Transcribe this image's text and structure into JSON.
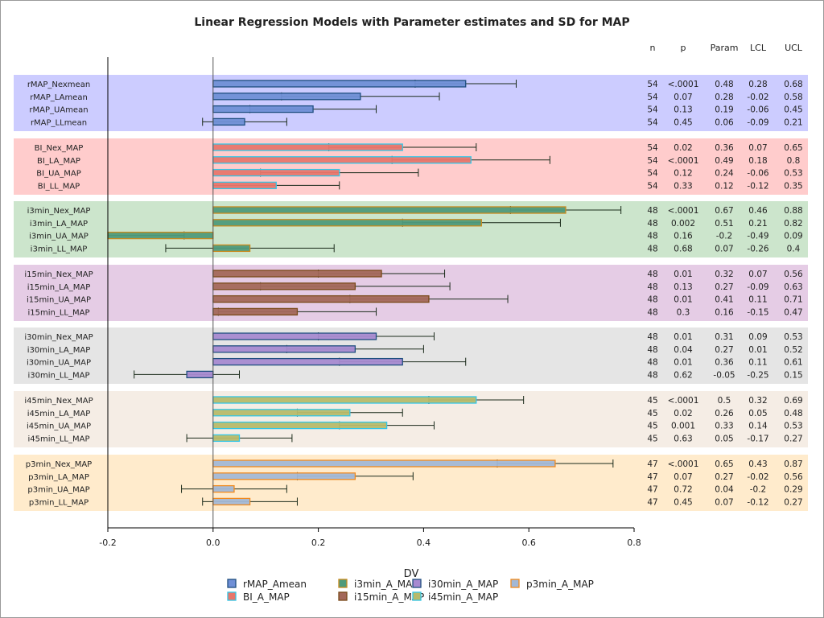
{
  "chart_data": {
    "type": "bar",
    "orientation": "horizontal",
    "title": "Linear Regression Models with Parameter estimates and SD for MAP",
    "xlim": [
      -0.2,
      0.8
    ],
    "xticks": [
      "-0.2",
      "0.0",
      "0.2",
      "0.4",
      "0.6",
      "0.8"
    ],
    "xtick_values": [
      -0.2,
      0,
      0.2,
      0.4,
      0.6,
      0.8
    ],
    "table_headers": [
      "n",
      "p",
      "Param",
      "LCL",
      "UCL"
    ],
    "legend": {
      "title": "DV",
      "placement": "bottom"
    },
    "groups": [
      {
        "name": "rMAP_Amean",
        "band": "#ccccff",
        "fill": "#6f8fd6",
        "border": "#1f4f80",
        "rows": [
          {
            "label": "rMAP_Nexmean",
            "n": "54",
            "p": "<.0001",
            "param": 0.48,
            "lcl": "0.28",
            "ucl": "0.68",
            "sd": 0.096
          },
          {
            "label": "rMAP_LAmean",
            "n": "54",
            "p": "0.07",
            "param": 0.28,
            "lcl": "-0.02",
            "ucl": "0.58",
            "sd": 0.15
          },
          {
            "label": "rMAP_UAmean",
            "n": "54",
            "p": "0.13",
            "param": 0.19,
            "lcl": "-0.06",
            "ucl": "0.45",
            "sd": 0.12
          },
          {
            "label": "rMAP_LLmean",
            "n": "54",
            "p": "0.45",
            "param": 0.06,
            "lcl": "-0.09",
            "ucl": "0.21",
            "sd": 0.08
          }
        ]
      },
      {
        "name": "BI_A_MAP",
        "band": "#ffcccc",
        "fill": "#e8766b",
        "border": "#33c6e6",
        "rows": [
          {
            "label": "BI_Nex_MAP",
            "n": "54",
            "p": "0.02",
            "param": 0.36,
            "lcl": "0.07",
            "ucl": "0.65",
            "sd": 0.14
          },
          {
            "label": "BI_LA_MAP",
            "n": "54",
            "p": "<.0001",
            "param": 0.49,
            "lcl": "0.18",
            "ucl": "0.8",
            "sd": 0.15
          },
          {
            "label": "BI_UA_MAP",
            "n": "54",
            "p": "0.12",
            "param": 0.24,
            "lcl": "-0.06",
            "ucl": "0.53",
            "sd": 0.15
          },
          {
            "label": "BI_LL_MAP",
            "n": "54",
            "p": "0.33",
            "param": 0.12,
            "lcl": "-0.12",
            "ucl": "0.35",
            "sd": 0.12
          }
        ]
      },
      {
        "name": "i3min_A_MAP",
        "band": "#cce5cc",
        "fill": "#4f9a7a",
        "border": "#c88a1e",
        "rows": [
          {
            "label": "i3min_Nex_MAP",
            "n": "48",
            "p": "<.0001",
            "param": 0.67,
            "lcl": "0.46",
            "ucl": "0.88",
            "sd": 0.105
          },
          {
            "label": "i3min_LA_MAP",
            "n": "48",
            "p": "0.002",
            "param": 0.51,
            "lcl": "0.21",
            "ucl": "0.82",
            "sd": 0.15
          },
          {
            "label": "i3min_UA_MAP",
            "n": "48",
            "p": "0.16",
            "param": -0.2,
            "lcl": "-0.49",
            "ucl": "0.09",
            "sd": 0.145
          },
          {
            "label": "i3min_LL_MAP",
            "n": "48",
            "p": "0.68",
            "param": 0.07,
            "lcl": "-0.26",
            "ucl": "0.4",
            "sd": 0.16
          }
        ]
      },
      {
        "name": "i15min_A_MAP",
        "band": "#e5cce5",
        "fill": "#a3685a",
        "border": "#7a4a1a",
        "rows": [
          {
            "label": "i15min_Nex_MAP",
            "n": "48",
            "p": "0.01",
            "param": 0.32,
            "lcl": "0.07",
            "ucl": "0.56",
            "sd": 0.12
          },
          {
            "label": "i15min_LA_MAP",
            "n": "48",
            "p": "0.13",
            "param": 0.27,
            "lcl": "-0.09",
            "ucl": "0.63",
            "sd": 0.18
          },
          {
            "label": "i15min_UA_MAP",
            "n": "48",
            "p": "0.01",
            "param": 0.41,
            "lcl": "0.11",
            "ucl": "0.71",
            "sd": 0.15
          },
          {
            "label": "i15min_LL_MAP",
            "n": "48",
            "p": "0.3",
            "param": 0.16,
            "lcl": "-0.15",
            "ucl": "0.47",
            "sd": 0.15
          }
        ]
      },
      {
        "name": "i30min_A_MAP",
        "band": "#e5e5e5",
        "fill": "#a78ad0",
        "border": "#1f4f80",
        "rows": [
          {
            "label": "i30min_Nex_MAP",
            "n": "48",
            "p": "0.01",
            "param": 0.31,
            "lcl": "0.09",
            "ucl": "0.53",
            "sd": 0.11
          },
          {
            "label": "i30min_LA_MAP",
            "n": "48",
            "p": "0.04",
            "param": 0.27,
            "lcl": "0.01",
            "ucl": "0.52",
            "sd": 0.13
          },
          {
            "label": "i30min_UA_MAP",
            "n": "48",
            "p": "0.01",
            "param": 0.36,
            "lcl": "0.11",
            "ucl": "0.61",
            "sd": 0.12
          },
          {
            "label": "i30min_LL_MAP",
            "n": "48",
            "p": "0.62",
            "param": -0.05,
            "lcl": "-0.25",
            "ucl": "0.15",
            "sd": 0.1
          }
        ]
      },
      {
        "name": "i45min_A_MAP",
        "band": "#f5ede5",
        "fill": "#b7ba6a",
        "border": "#33c6e6",
        "rows": [
          {
            "label": "i45min_Nex_MAP",
            "n": "45",
            "p": "<.0001",
            "param": 0.5,
            "lcl": "0.32",
            "ucl": "0.69",
            "sd": 0.09
          },
          {
            "label": "i45min_LA_MAP",
            "n": "45",
            "p": "0.02",
            "param": 0.26,
            "lcl": "0.05",
            "ucl": "0.48",
            "sd": 0.1
          },
          {
            "label": "i45min_UA_MAP",
            "n": "45",
            "p": "0.001",
            "param": 0.33,
            "lcl": "0.14",
            "ucl": "0.53",
            "sd": 0.09
          },
          {
            "label": "i45min_LL_MAP",
            "n": "45",
            "p": "0.63",
            "param": 0.05,
            "lcl": "-0.17",
            "ucl": "0.27",
            "sd": 0.1
          }
        ]
      },
      {
        "name": "p3min_A_MAP",
        "band": "#ffebcc",
        "fill": "#a3b8d5",
        "border": "#f08a1e",
        "rows": [
          {
            "label": "p3min_Nex_MAP",
            "n": "47",
            "p": "<.0001",
            "param": 0.65,
            "lcl": "0.43",
            "ucl": "0.87",
            "sd": 0.11
          },
          {
            "label": "p3min_LA_MAP",
            "n": "47",
            "p": "0.07",
            "param": 0.27,
            "lcl": "-0.02",
            "ucl": "0.56",
            "sd": 0.11
          },
          {
            "label": "p3min_UA_MAP",
            "n": "47",
            "p": "0.72",
            "param": 0.04,
            "lcl": "-0.2",
            "ucl": "0.29",
            "sd": 0.1
          },
          {
            "label": "p3min_LL_MAP",
            "n": "47",
            "p": "0.45",
            "param": 0.07,
            "lcl": "-0.12",
            "ucl": "0.27",
            "sd": 0.09
          }
        ]
      }
    ],
    "legend_order": [
      0,
      2,
      4,
      6,
      1,
      3,
      5
    ]
  }
}
